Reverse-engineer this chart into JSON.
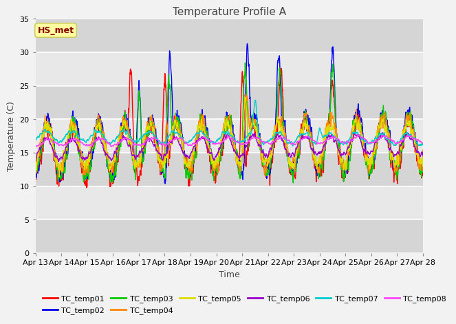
{
  "title": "Temperature Profile A",
  "xlabel": "Time",
  "ylabel": "Temperature (C)",
  "ylim": [
    0,
    35
  ],
  "n_days": 15,
  "x_tick_labels": [
    "Apr 13",
    "Apr 14",
    "Apr 15",
    "Apr 16",
    "Apr 17",
    "Apr 18",
    "Apr 19",
    "Apr 20",
    "Apr 21",
    "Apr 22",
    "Apr 23",
    "Apr 24",
    "Apr 25",
    "Apr 26",
    "Apr 27",
    "Apr 28"
  ],
  "annotation_text": "HS_met",
  "annotation_color": "#8B0000",
  "annotation_bg": "#FFFFA0",
  "annotation_edge": "#CCCC66",
  "fig_bg": "#f2f2f2",
  "plot_bg": "#e8e8e8",
  "band_dark": "#d5d5d5",
  "band_light": "#e8e8e8",
  "series_colors": {
    "TC_temp01": "#FF0000",
    "TC_temp02": "#0000EE",
    "TC_temp03": "#00CC00",
    "TC_temp04": "#FF8800",
    "TC_temp05": "#DDDD00",
    "TC_temp06": "#9900CC",
    "TC_temp07": "#00CCCC",
    "TC_temp08": "#FF44FF"
  },
  "line_width": 1.0,
  "yticks": [
    0,
    5,
    10,
    15,
    20,
    25,
    30,
    35
  ],
  "title_fontsize": 11,
  "legend_fontsize": 8,
  "tick_fontsize": 8
}
